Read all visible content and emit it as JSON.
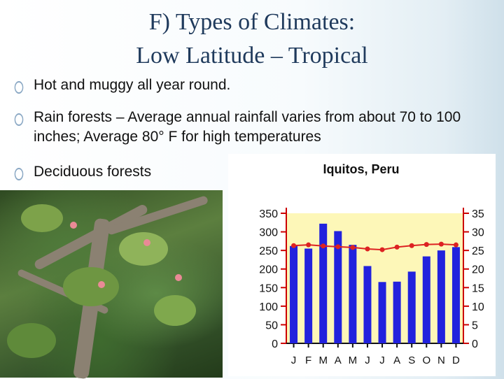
{
  "slide": {
    "title_line1": "F) Types of Climates:",
    "title_line2": "Low Latitude – Tropical",
    "bullets": [
      "Hot and muggy all year round.",
      "Rain forests – Average annual rainfall varies from about 70 to 100 inches; Average 80° F for high temperatures",
      "Deciduous forests"
    ]
  },
  "photo": {
    "icon": "forest-photo"
  },
  "chart_data": {
    "type": "bar",
    "title": "Iquitos, Peru",
    "categories": [
      "J",
      "F",
      "M",
      "A",
      "M",
      "J",
      "J",
      "A",
      "S",
      "O",
      "N",
      "D"
    ],
    "series": [
      {
        "values": [
          262,
          255,
          322,
          302,
          265,
          208,
          165,
          166,
          193,
          234,
          250,
          259
        ],
        "color": "#2222dd"
      },
      {
        "values": [
          26.3,
          26.5,
          26.2,
          26.0,
          25.8,
          25.4,
          25.2,
          25.9,
          26.3,
          26.6,
          26.7,
          26.5
        ],
        "color": "#dd2222"
      }
    ],
    "ylim_left": [
      0,
      350
    ],
    "ylim_right": [
      0,
      35
    ],
    "yticks_left": [
      0,
      50,
      100,
      150,
      200,
      250,
      300,
      350
    ],
    "yticks_right": [
      0,
      5,
      10,
      15,
      20,
      25,
      30,
      35
    ],
    "plot_background": "#fdf7b8",
    "axis_color": "#cc0000",
    "grid": false
  }
}
